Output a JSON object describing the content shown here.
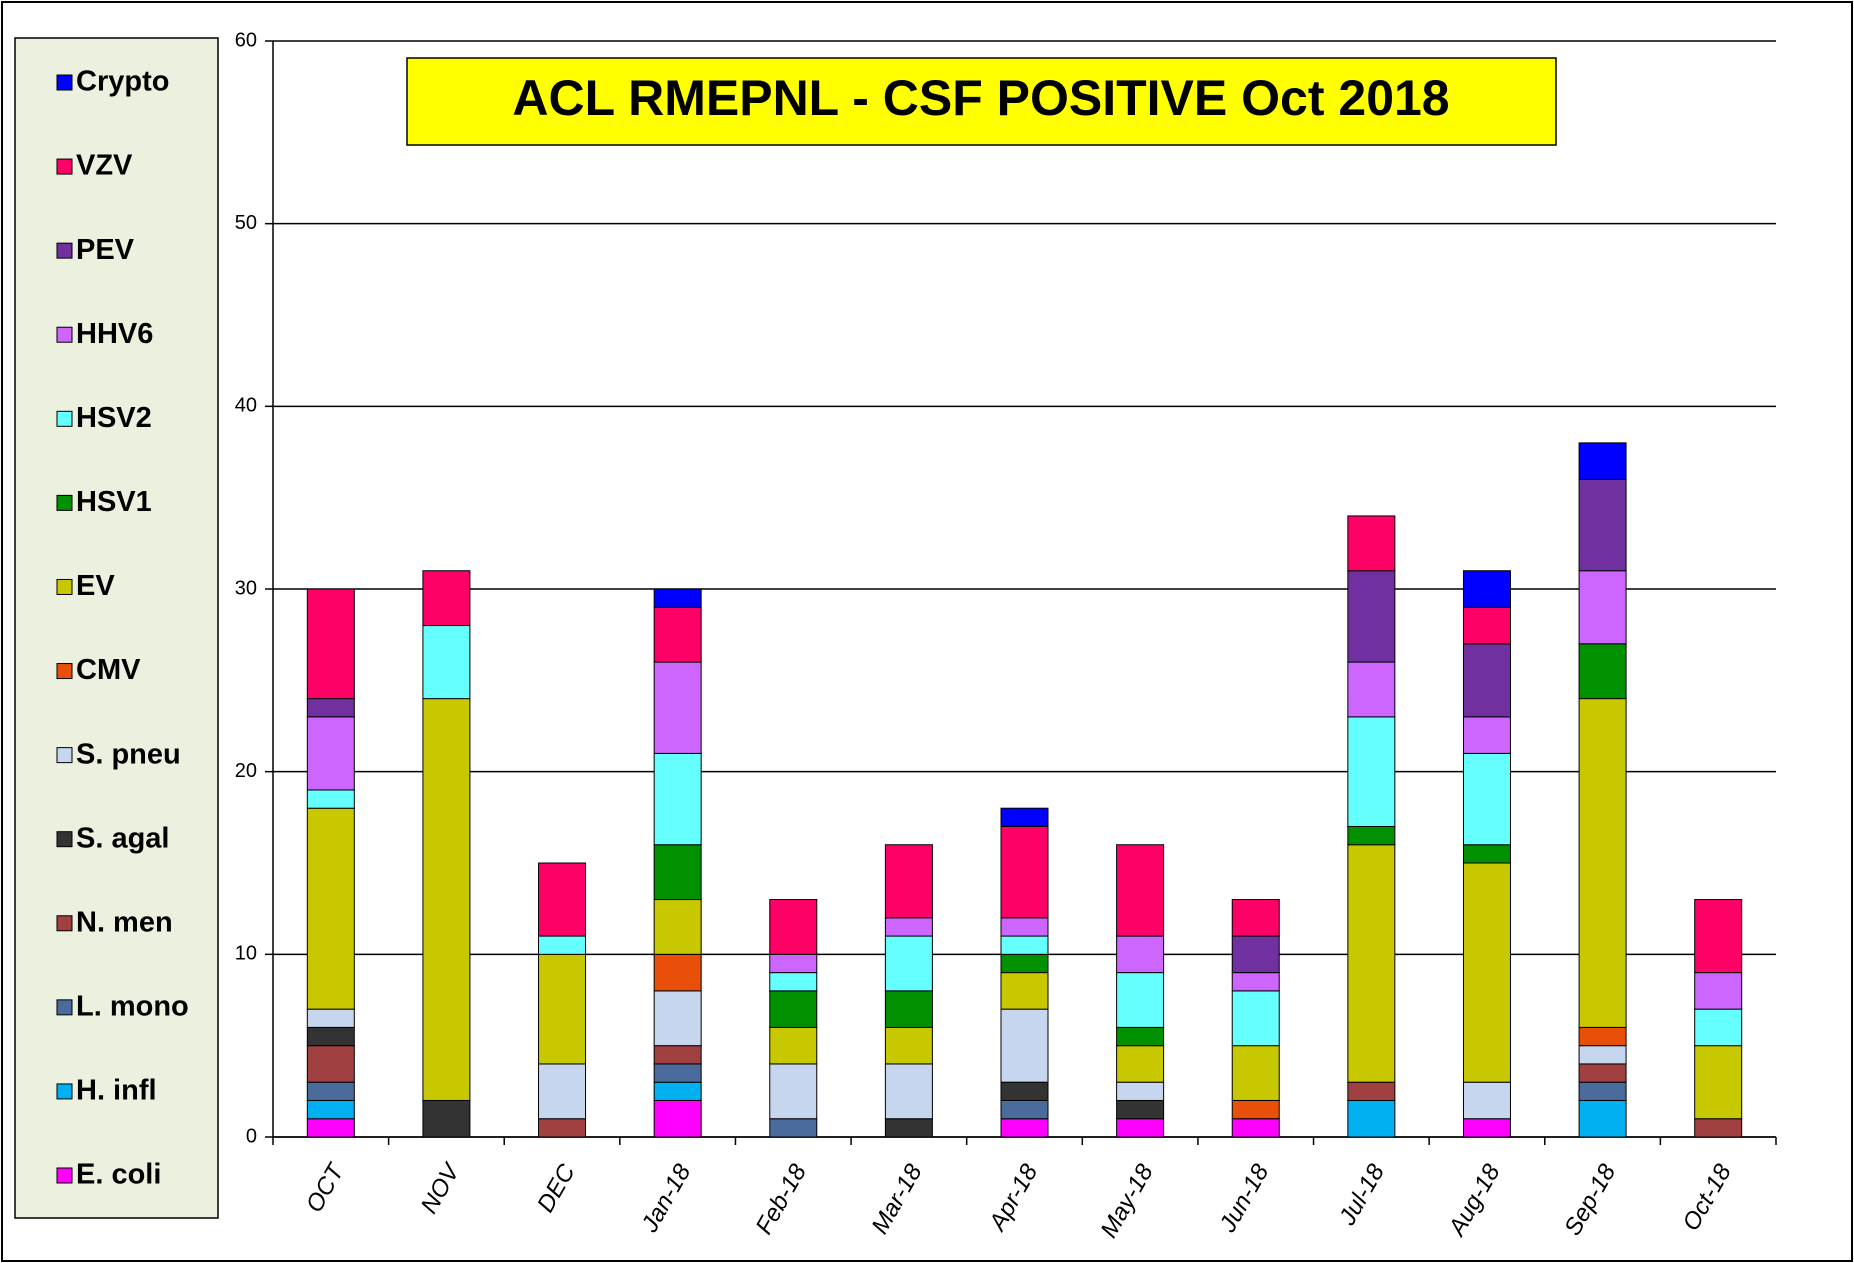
{
  "chart_data": {
    "type": "stacked_bar",
    "title": "ACL RMEPNL - CSF POSITIVE Oct 2018",
    "categories": [
      "OCT",
      "NOV",
      "DEC",
      "Jan-18",
      "Feb-18",
      "Mar-18",
      "Apr-18",
      "May-18",
      "Jun-18",
      "Jul-18",
      "Aug-18",
      "Sep-18",
      "Oct-18"
    ],
    "series": [
      {
        "name": "E. coli",
        "color": "#ff00ff",
        "values": [
          1,
          0,
          0,
          2,
          0,
          0,
          1,
          1,
          1,
          0,
          1,
          0,
          0
        ]
      },
      {
        "name": "H. infl",
        "color": "#00b0f0",
        "values": [
          1,
          0,
          0,
          1,
          0,
          0,
          0,
          0,
          0,
          2,
          0,
          2,
          0
        ]
      },
      {
        "name": "L. mono",
        "color": "#4a6b9c",
        "values": [
          1,
          0,
          0,
          1,
          1,
          0,
          1,
          0,
          0,
          0,
          0,
          1,
          0
        ]
      },
      {
        "name": "N. men",
        "color": "#a04040",
        "values": [
          2,
          0,
          1,
          1,
          0,
          0,
          0,
          0,
          0,
          1,
          0,
          1,
          1
        ]
      },
      {
        "name": "S. agal",
        "color": "#333333",
        "values": [
          1,
          2,
          0,
          0,
          0,
          1,
          1,
          1,
          0,
          0,
          0,
          0,
          0
        ]
      },
      {
        "name": "S. pneu",
        "color": "#c6d6ee",
        "values": [
          1,
          0,
          3,
          3,
          3,
          3,
          4,
          1,
          0,
          0,
          2,
          1,
          0
        ]
      },
      {
        "name": "CMV",
        "color": "#e8500a",
        "values": [
          0,
          0,
          0,
          2,
          0,
          0,
          0,
          0,
          1,
          0,
          0,
          1,
          0
        ]
      },
      {
        "name": "EV",
        "color": "#c8c800",
        "values": [
          11,
          22,
          6,
          3,
          2,
          2,
          2,
          2,
          3,
          13,
          12,
          18,
          4
        ]
      },
      {
        "name": "HSV1",
        "color": "#009000",
        "values": [
          0,
          0,
          0,
          3,
          2,
          2,
          1,
          1,
          0,
          1,
          1,
          3,
          0
        ]
      },
      {
        "name": "HSV2",
        "color": "#66ffff",
        "values": [
          1,
          4,
          1,
          5,
          1,
          3,
          1,
          3,
          3,
          6,
          5,
          0,
          2
        ]
      },
      {
        "name": "HHV6",
        "color": "#cc66ff",
        "values": [
          4,
          0,
          0,
          5,
          1,
          1,
          1,
          2,
          1,
          3,
          2,
          4,
          2
        ]
      },
      {
        "name": "PEV",
        "color": "#7030a0",
        "values": [
          1,
          0,
          0,
          0,
          0,
          0,
          0,
          0,
          2,
          5,
          4,
          5,
          0
        ]
      },
      {
        "name": "VZV",
        "color": "#ff0066",
        "values": [
          6,
          3,
          4,
          3,
          3,
          4,
          5,
          5,
          2,
          3,
          2,
          0,
          4
        ]
      },
      {
        "name": "Crypto",
        "color": "#0000ff",
        "values": [
          0,
          0,
          0,
          1,
          0,
          0,
          1,
          0,
          0,
          0,
          2,
          2,
          0
        ]
      }
    ],
    "ylim": [
      0,
      60
    ],
    "yticks": [
      0,
      10,
      20,
      30,
      40,
      50,
      60
    ],
    "grid": true,
    "legend_position": "left"
  }
}
